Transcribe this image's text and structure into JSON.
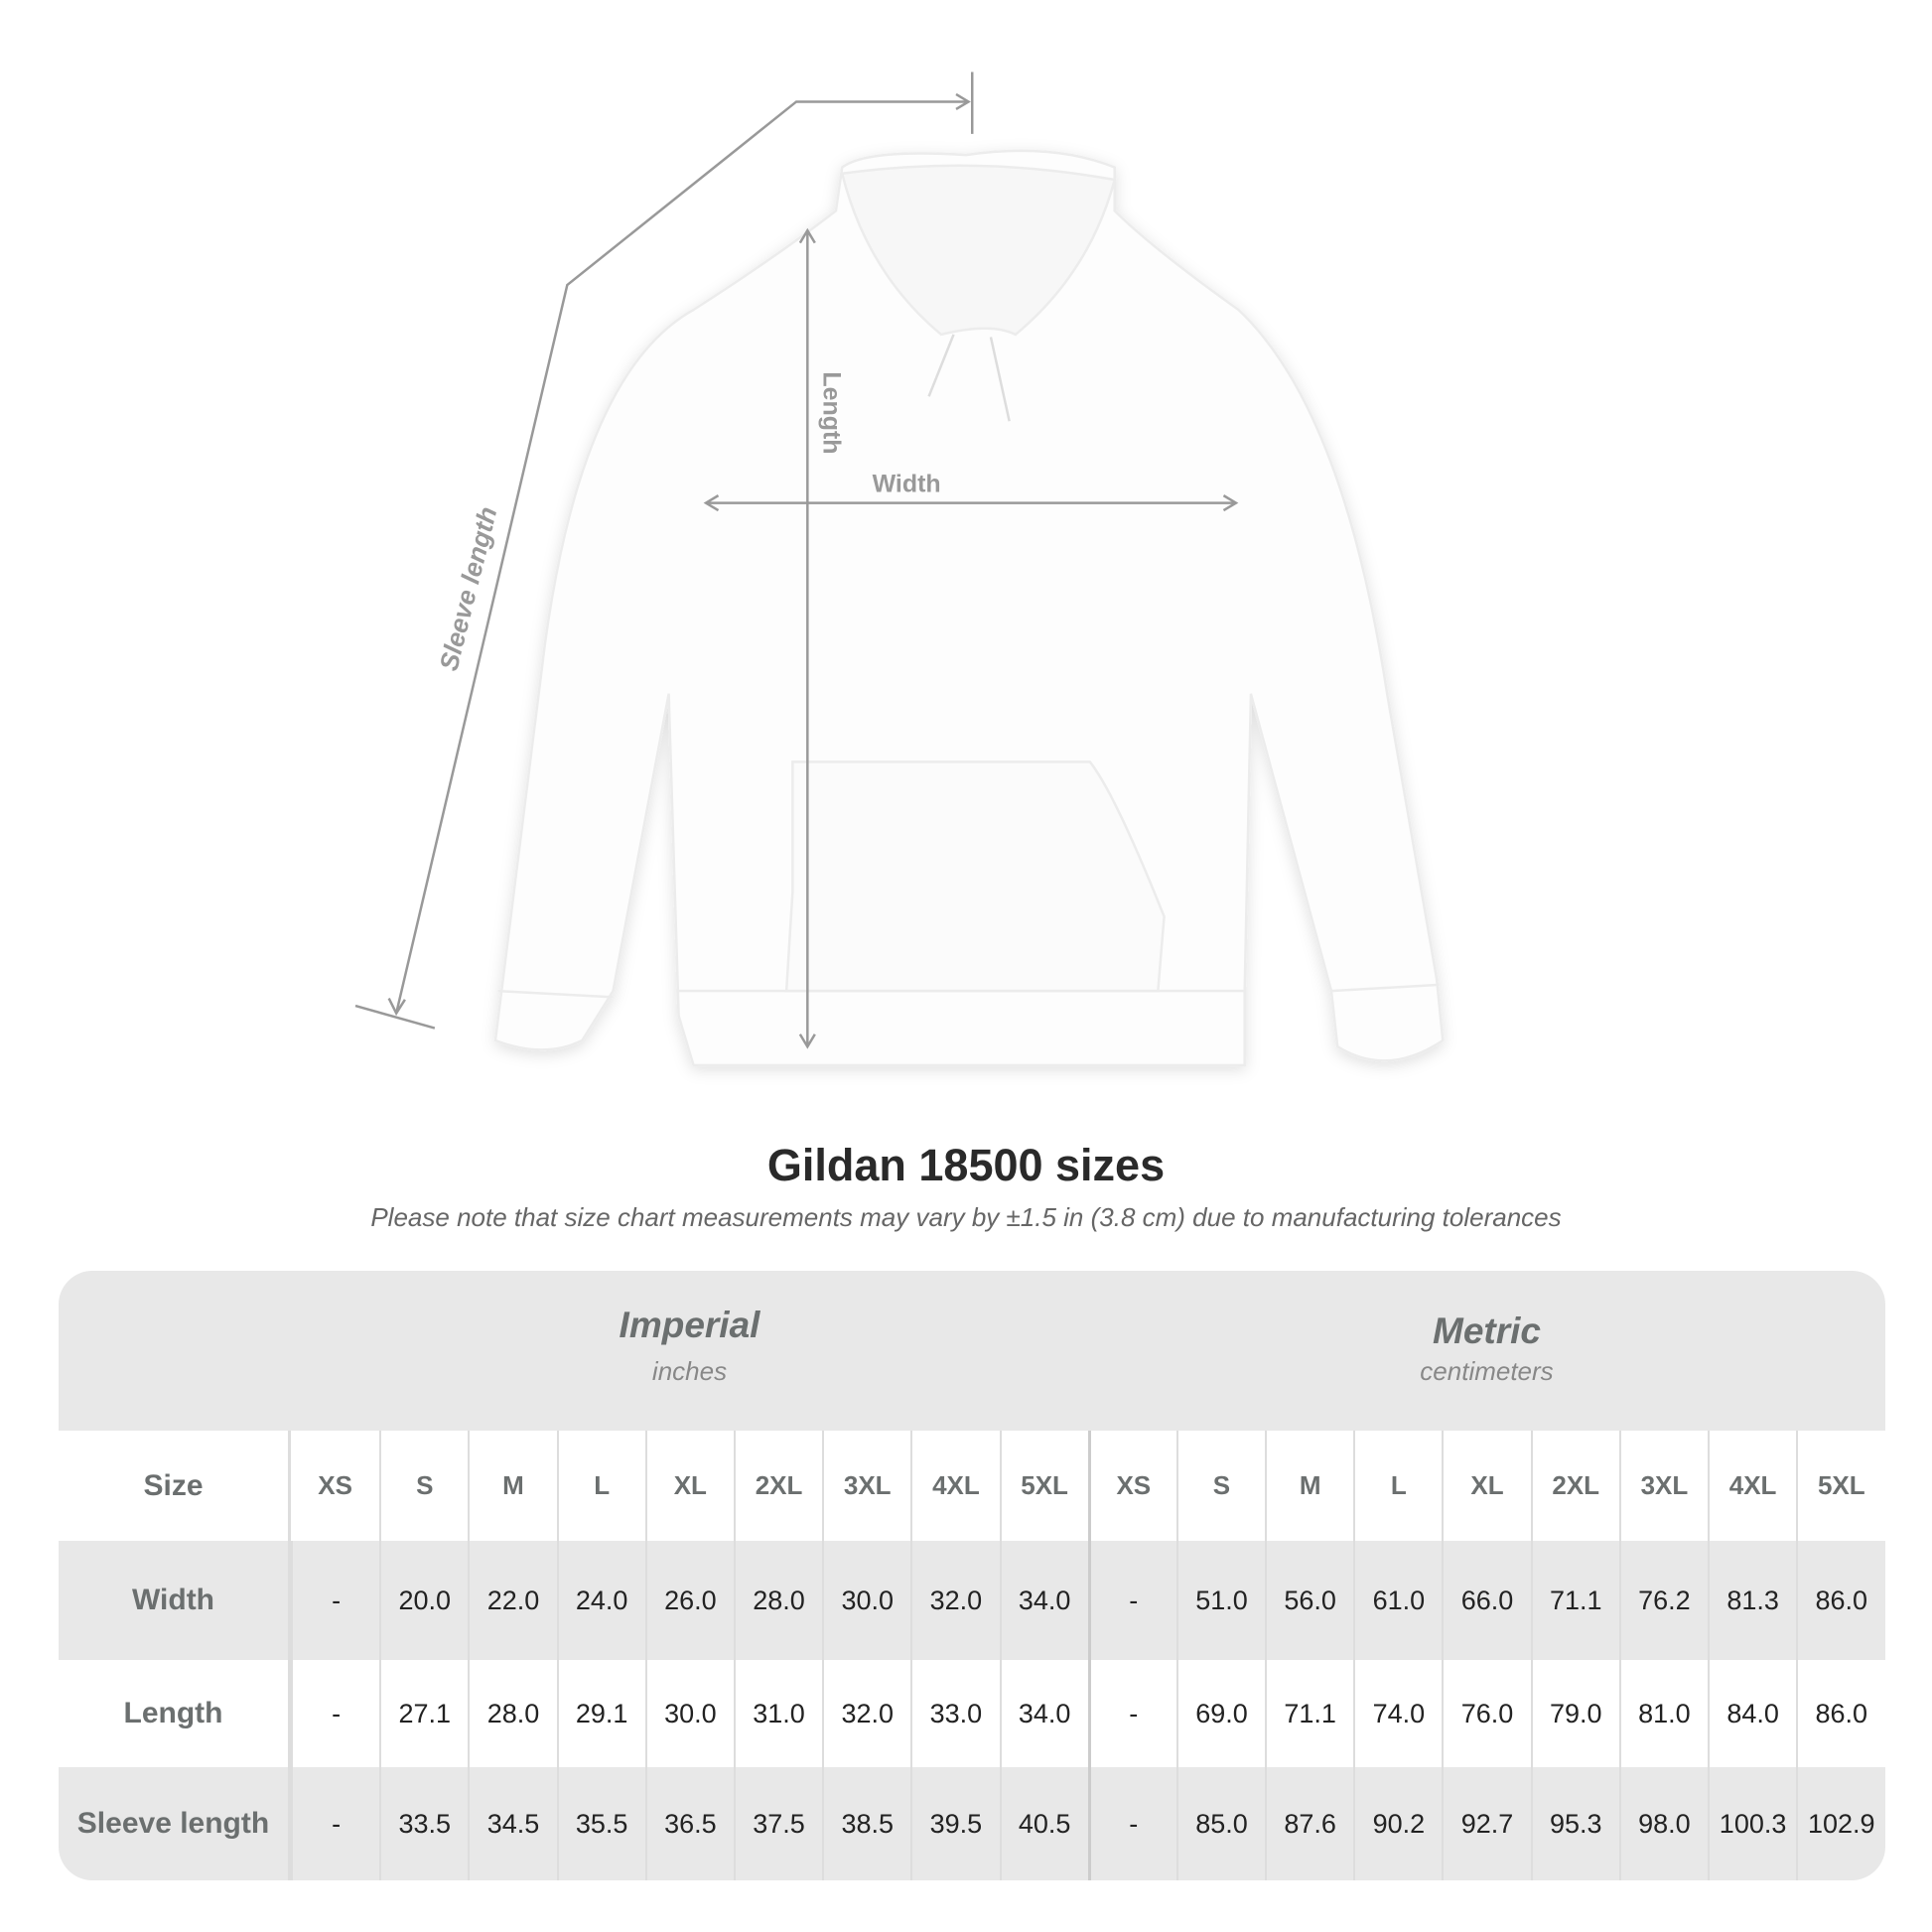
{
  "diagram": {
    "labels": {
      "length": "Length",
      "width": "Width",
      "sleeve": "Sleeve length"
    }
  },
  "title": "Gildan 18500 sizes",
  "subtitle": "Please note that size chart measurements may vary by ±1.5 in (3.8 cm) due to manufacturing tolerances",
  "table": {
    "imperial": {
      "name": "Imperial",
      "unit": "inches"
    },
    "metric": {
      "name": "Metric",
      "unit": "centimeters"
    },
    "size_label": "Size",
    "sizes": [
      "XS",
      "S",
      "M",
      "L",
      "XL",
      "2XL",
      "3XL",
      "4XL",
      "5XL"
    ],
    "rows": [
      {
        "label": "Width",
        "imperial": [
          "-",
          "20.0",
          "22.0",
          "24.0",
          "26.0",
          "28.0",
          "30.0",
          "32.0",
          "34.0"
        ],
        "metric": [
          "-",
          "51.0",
          "56.0",
          "61.0",
          "66.0",
          "71.1",
          "76.2",
          "81.3",
          "86.0"
        ]
      },
      {
        "label": "Length",
        "imperial": [
          "-",
          "27.1",
          "28.0",
          "29.1",
          "30.0",
          "31.0",
          "32.0",
          "33.0",
          "34.0"
        ],
        "metric": [
          "-",
          "69.0",
          "71.1",
          "74.0",
          "76.0",
          "79.0",
          "81.0",
          "84.0",
          "86.0"
        ]
      },
      {
        "label": "Sleeve length",
        "imperial": [
          "-",
          "33.5",
          "34.5",
          "35.5",
          "36.5",
          "37.5",
          "38.5",
          "39.5",
          "40.5"
        ],
        "metric": [
          "-",
          "85.0",
          "87.6",
          "90.2",
          "92.7",
          "95.3",
          "98.0",
          "100.3",
          "102.9"
        ]
      }
    ]
  }
}
